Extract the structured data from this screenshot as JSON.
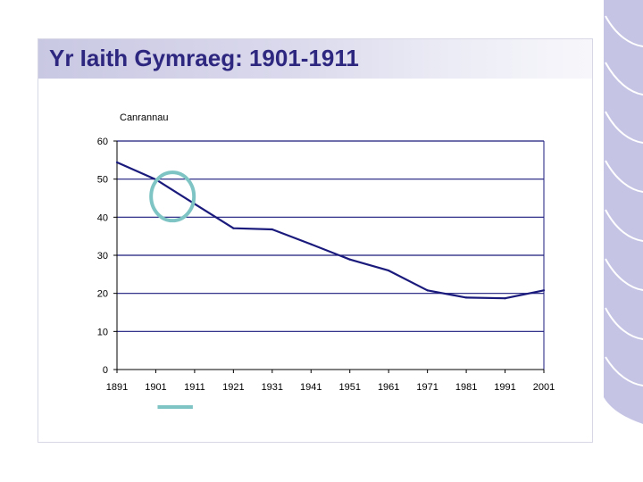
{
  "slide": {
    "title": "Yr Iaith Gymraeg: 1901-1911",
    "colors": {
      "title_text": "#2e2780",
      "title_band": "#c9c8e3",
      "decoration": "#c6c4e4"
    }
  },
  "chart_data": {
    "type": "line",
    "title": "",
    "xlabel": "",
    "ylabel": "Canrannau",
    "x_ticks": [
      "1891",
      "1901",
      "1911",
      "1921",
      "1931",
      "1941",
      "1951",
      "1961",
      "1971",
      "1981",
      "1991",
      "2001"
    ],
    "xlim": [
      1891,
      2001
    ],
    "ylim": [
      0,
      60
    ],
    "y_ticks": [
      0,
      10,
      20,
      30,
      40,
      50,
      60
    ],
    "grid": "horizontal",
    "legend": "none",
    "series": [
      {
        "color": "#1a1a7c",
        "points": [
          [
            1891,
            54.4
          ],
          [
            1901,
            49.9
          ],
          [
            1911,
            43.5
          ],
          [
            1921,
            37.1
          ],
          [
            1931,
            36.8
          ],
          [
            1941,
            32.9
          ],
          [
            1951,
            28.9
          ],
          [
            1961,
            26.0
          ],
          [
            1971,
            20.8
          ],
          [
            1981,
            18.9
          ],
          [
            1991,
            18.7
          ],
          [
            2001,
            20.8
          ]
        ]
      }
    ],
    "annotations": [
      {
        "shape": "ellipse",
        "x": 1906,
        "y": 47.3,
        "color": "#7fc4c4"
      },
      {
        "shape": "underline",
        "x_from": 1901,
        "x_to": 1911,
        "color": "#7fc4c4"
      }
    ]
  }
}
